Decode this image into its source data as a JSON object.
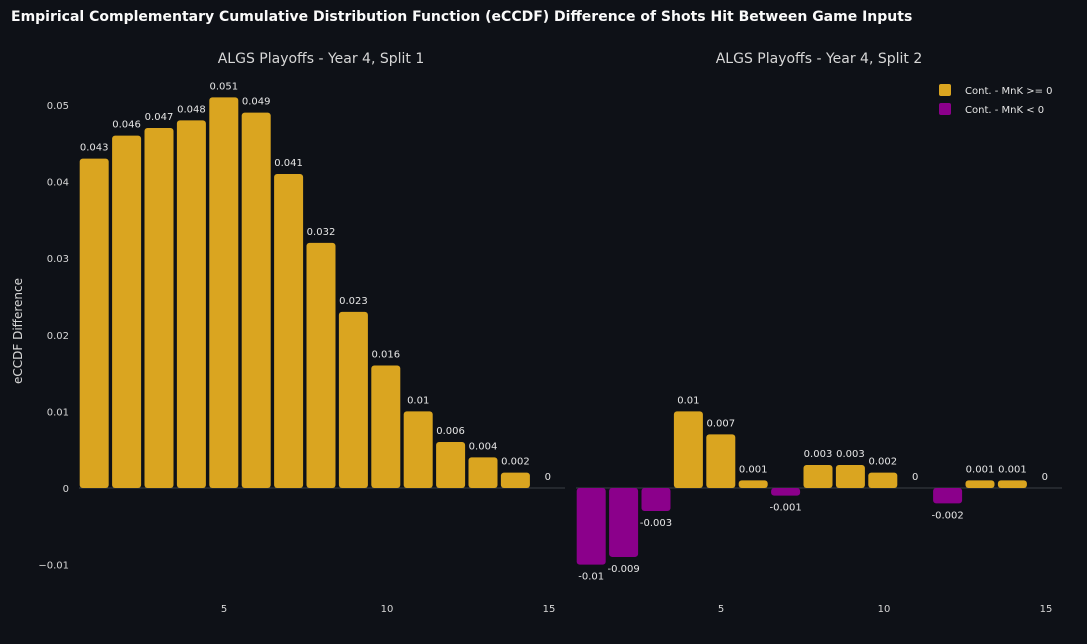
{
  "colors": {
    "background": "#0e1117",
    "positive": "#daa520",
    "negative": "#8b008b",
    "text": "#fafafa"
  },
  "chart_title": "Empirical Complementary Cumulative Distribution Function (eCCDF) Difference of Shots Hit Between Game Inputs",
  "legend": [
    {
      "label": "Cont. - MnK >= 0",
      "color": "#daa520"
    },
    {
      "label": "Cont. - MnK < 0",
      "color": "#8b008b"
    }
  ],
  "chart_data": [
    {
      "type": "bar",
      "title": "ALGS Playoffs - Year 4, Split 1",
      "ylabel": "eCCDF Difference",
      "x": [
        1,
        2,
        3,
        4,
        5,
        6,
        7,
        8,
        9,
        10,
        11,
        12,
        13,
        14,
        15
      ],
      "values": [
        0.043,
        0.046,
        0.047,
        0.048,
        0.051,
        0.049,
        0.041,
        0.032,
        0.023,
        0.016,
        0.01,
        0.006,
        0.004,
        0.002,
        0
      ],
      "labels": [
        "0.043",
        "0.046",
        "0.047",
        "0.048",
        "0.051",
        "0.049",
        "0.041",
        "0.032",
        "0.023",
        "0.016",
        "0.01",
        "0.006",
        "0.004",
        "0.002",
        "0"
      ],
      "x_ticks": [
        5,
        10,
        15
      ],
      "y_ticks": [
        -0.01,
        0,
        0.01,
        0.02,
        0.03,
        0.04,
        0.05
      ],
      "y_tick_labels": [
        "−0.01",
        "0",
        "0.01",
        "0.02",
        "0.03",
        "0.04",
        "0.05"
      ],
      "ylim": [
        -0.012,
        0.054
      ]
    },
    {
      "type": "bar",
      "title": "ALGS Playoffs - Year 4, Split 2",
      "x": [
        1,
        2,
        3,
        4,
        5,
        6,
        7,
        8,
        9,
        10,
        11,
        12,
        13,
        14,
        15
      ],
      "values": [
        -0.01,
        -0.009,
        -0.003,
        0.01,
        0.007,
        0.001,
        -0.001,
        0.003,
        0.003,
        0.002,
        0,
        -0.002,
        0.001,
        0.001,
        0
      ],
      "labels": [
        "-0.01",
        "-0.009",
        "-0.003",
        "0.01",
        "0.007",
        "0.001",
        "-0.001",
        "0.003",
        "0.003",
        "0.002",
        "0",
        "-0.002",
        "0.001",
        "0.001",
        "0"
      ],
      "x_ticks": [
        5,
        10,
        15
      ],
      "ylim": [
        -0.012,
        0.054
      ]
    }
  ]
}
